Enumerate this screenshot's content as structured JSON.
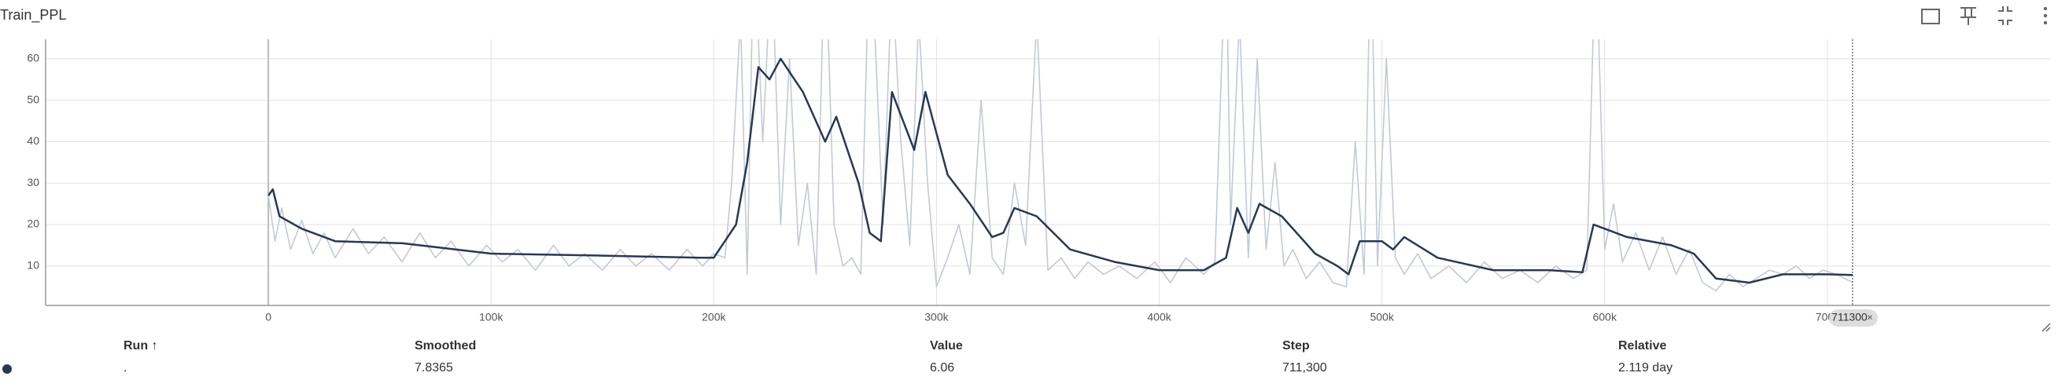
{
  "chart_data": {
    "type": "line",
    "title": "Train_PPL",
    "xlim": [
      -100000,
      800000
    ],
    "ylim": [
      0.5,
      64.7
    ],
    "xticks": [
      0,
      {
        "value": 100000,
        "label": "100k"
      },
      {
        "value": 200000,
        "label": "200k"
      },
      {
        "value": 300000,
        "label": "300k"
      },
      {
        "value": 400000,
        "label": "400k"
      },
      {
        "value": 500000,
        "label": "500k"
      },
      {
        "value": 600000,
        "label": "600k"
      },
      {
        "value": 700000,
        "label": "700k"
      }
    ],
    "yticks": [
      10,
      20,
      30,
      40,
      50,
      60
    ],
    "grid": true,
    "step_marker": 711300,
    "series": [
      {
        "name": "raw",
        "color": "#c3c9d5",
        "x": [
          0,
          3000,
          6000,
          10000,
          15000,
          20000,
          25000,
          30000,
          38000,
          45000,
          52000,
          60000,
          68000,
          75000,
          82000,
          90000,
          98000,
          105000,
          112000,
          120000,
          128000,
          135000,
          142000,
          150000,
          158000,
          165000,
          172000,
          180000,
          188000,
          195000,
          200000,
          205000,
          208000,
          212000,
          215000,
          218000,
          222000,
          226000,
          230000,
          234000,
          238000,
          242000,
          246000,
          250000,
          254000,
          258000,
          262000,
          266000,
          270000,
          272000,
          276000,
          280000,
          284000,
          288000,
          292000,
          296000,
          300000,
          305000,
          310000,
          315000,
          320000,
          325000,
          330000,
          335000,
          340000,
          345000,
          350000,
          356000,
          362000,
          368000,
          375000,
          382000,
          390000,
          398000,
          405000,
          412000,
          420000,
          425000,
          430000,
          432000,
          436000,
          440000,
          444000,
          448000,
          452000,
          456000,
          460000,
          466000,
          472000,
          478000,
          484000,
          488000,
          492000,
          495000,
          498000,
          502000,
          506000,
          510000,
          516000,
          522000,
          530000,
          538000,
          546000,
          554000,
          562000,
          570000,
          578000,
          586000,
          592000,
          596000,
          600000,
          604000,
          608000,
          614000,
          620000,
          626000,
          632000,
          638000,
          644000,
          650000,
          656000,
          662000,
          668000,
          674000,
          680000,
          686000,
          692000,
          698000,
          704000,
          711300
        ],
        "values": [
          27,
          16,
          24,
          14,
          21,
          13,
          18,
          12,
          19,
          13,
          17,
          11,
          18,
          12,
          16,
          10,
          15,
          11,
          14,
          9,
          15,
          10,
          13,
          9,
          14,
          10,
          13,
          9,
          14,
          10,
          13,
          12,
          30,
          70,
          8,
          90,
          40,
          85,
          20,
          60,
          15,
          30,
          8,
          90,
          20,
          10,
          12,
          8,
          90,
          70,
          20,
          80,
          40,
          15,
          70,
          30,
          5,
          12,
          20,
          8,
          50,
          12,
          8,
          30,
          15,
          70,
          9,
          12,
          7,
          11,
          8,
          10,
          7,
          11,
          6,
          12,
          8,
          11,
          90,
          20,
          70,
          12,
          60,
          14,
          35,
          10,
          14,
          7,
          11,
          6,
          5,
          40,
          8,
          90,
          10,
          60,
          12,
          8,
          13,
          7,
          10,
          6,
          11,
          7,
          9,
          6,
          10,
          7,
          9,
          90,
          14,
          25,
          11,
          18,
          9,
          17,
          8,
          14,
          6,
          4,
          8,
          5,
          7,
          9,
          8,
          10,
          7,
          9,
          8,
          6.06
        ]
      },
      {
        "name": "smoothed",
        "color": "#2b3853",
        "x": [
          0,
          2000,
          5000,
          15000,
          30000,
          60000,
          100000,
          150000,
          195000,
          200000,
          210000,
          215000,
          220000,
          225000,
          230000,
          240000,
          250000,
          255000,
          265000,
          270000,
          275000,
          280000,
          290000,
          295000,
          305000,
          315000,
          325000,
          330000,
          335000,
          345000,
          360000,
          380000,
          400000,
          420000,
          430000,
          435000,
          440000,
          445000,
          455000,
          470000,
          480000,
          485000,
          490000,
          500000,
          505000,
          510000,
          525000,
          550000,
          575000,
          590000,
          595000,
          610000,
          630000,
          640000,
          650000,
          665000,
          680000,
          700000,
          711300
        ],
        "values": [
          27,
          28.5,
          22,
          19,
          16,
          15.5,
          13,
          12.5,
          12,
          12,
          20,
          35,
          58,
          55,
          60,
          52,
          40,
          46,
          30,
          18,
          16,
          52,
          38,
          52,
          32,
          25,
          17,
          18,
          24,
          22,
          14,
          11,
          9,
          9,
          12,
          24,
          18,
          25,
          22,
          13,
          10,
          8,
          16,
          16,
          14,
          17,
          12,
          9,
          9,
          8.5,
          20,
          17,
          15,
          13,
          7,
          6,
          8,
          8,
          7.8365
        ]
      }
    ],
    "table": {
      "headers": [
        "Run ↑",
        "Smoothed",
        "Value",
        "Step",
        "Relative"
      ],
      "row": [
        ".",
        "7.8365",
        "6.06",
        "711,300",
        "2.119 day"
      ]
    }
  }
}
